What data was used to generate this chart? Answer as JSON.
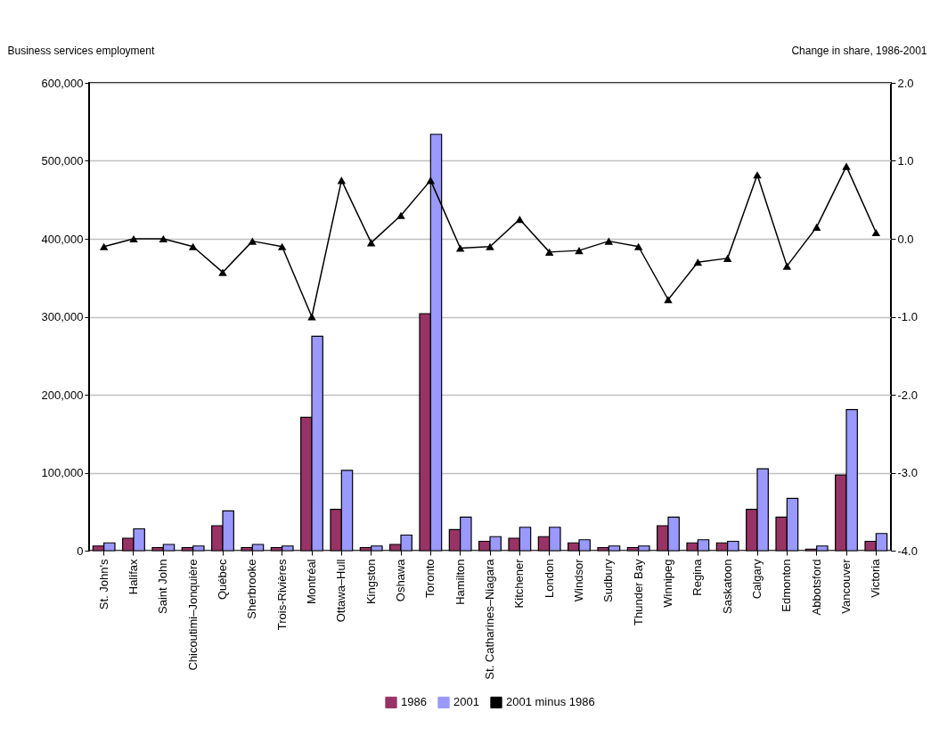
{
  "chart_data": {
    "type": "bar",
    "xlabel": null,
    "ylabel": "Business services employment",
    "y2label": "Change in share, 1986-2001",
    "categories": [
      "St. John's",
      "Halifax",
      "Saint John",
      "Chicoutimi–Jonquière",
      "Québec",
      "Sherbrooke",
      "Trois-Rivières",
      "Montréal",
      "Ottawa–Hull",
      "Kingston",
      "Oshawa",
      "Toronto",
      "Hamilton",
      "St. Catharines–Niagara",
      "Kitchener",
      "London",
      "Windsor",
      "Sudbury",
      "Thunder Bay",
      "Winnipeg",
      "Regina",
      "Saskatoon",
      "Calgary",
      "Edmonton",
      "Abbotsford",
      "Vancouver",
      "Victoria"
    ],
    "series": [
      {
        "name": "1986",
        "color": "#993366",
        "values": [
          6000,
          16000,
          4000,
          4000,
          32000,
          4000,
          4000,
          171000,
          53000,
          4000,
          8000,
          304000,
          27000,
          12000,
          16000,
          18000,
          10000,
          4000,
          4000,
          32000,
          10000,
          10000,
          53000,
          43000,
          2000,
          97000,
          12000
        ]
      },
      {
        "name": "2001",
        "color": "#9999ff",
        "values": [
          10000,
          28000,
          8000,
          6000,
          51000,
          8000,
          6000,
          275000,
          103000,
          6000,
          20000,
          534000,
          43000,
          18000,
          30000,
          30000,
          14000,
          6000,
          6000,
          43000,
          14000,
          12000,
          105000,
          67000,
          6000,
          181000,
          22000
        ]
      },
      {
        "name": "2001 minus 1986",
        "type": "line",
        "axis": "y2",
        "color": "#000000",
        "marker": "triangle",
        "values": [
          -0.1,
          0.0,
          0.0,
          -0.1,
          -0.43,
          -0.03,
          -0.1,
          -1.0,
          0.75,
          -0.05,
          0.3,
          0.75,
          -0.12,
          -0.1,
          0.25,
          -0.17,
          -0.15,
          -0.03,
          -0.1,
          -0.78,
          -0.3,
          -0.25,
          0.82,
          -0.35,
          0.15,
          0.93,
          0.08
        ]
      }
    ],
    "ylim": [
      0,
      600000
    ],
    "yticks": [
      {
        "value": 0,
        "label": "0"
      },
      {
        "value": 100000,
        "label": "100,000"
      },
      {
        "value": 200000,
        "label": "200,000"
      },
      {
        "value": 300000,
        "label": "300,000"
      },
      {
        "value": 400000,
        "label": "400,000"
      },
      {
        "value": 500000,
        "label": "500,000"
      },
      {
        "value": 600000,
        "label": "600,000"
      }
    ],
    "y2lim": [
      -4,
      2
    ],
    "y2ticks": [
      {
        "value": -4,
        "label": "-4.0"
      },
      {
        "value": -3,
        "label": "-3.0"
      },
      {
        "value": -2,
        "label": "-2.0"
      },
      {
        "value": -1,
        "label": "-1.0"
      },
      {
        "value": 0,
        "label": "0.0"
      },
      {
        "value": 1,
        "label": "1.0"
      },
      {
        "value": 2,
        "label": "2.0"
      }
    ],
    "grid": "y",
    "legend": "bottom"
  }
}
